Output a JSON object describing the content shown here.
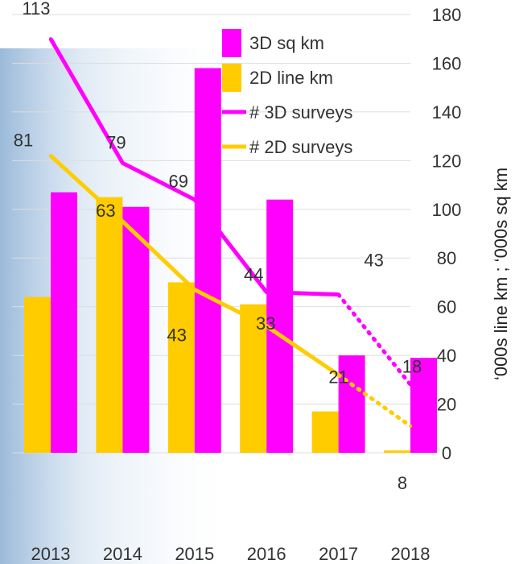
{
  "chart_data": {
    "type": "bar",
    "categories": [
      "2013",
      "2014",
      "2015",
      "2016",
      "2017",
      "2018"
    ],
    "ylabel": "‘000s line km ; ‘000s sq km",
    "ylim": [
      0,
      180
    ],
    "yticks": [
      0,
      20,
      40,
      60,
      80,
      100,
      120,
      140,
      160,
      180
    ],
    "grid": true,
    "legend_position": "top-right",
    "series": [
      {
        "name": "3D sq km",
        "kind": "bar",
        "color": "#ff00ff",
        "values": [
          107,
          101,
          158,
          104,
          40,
          39
        ]
      },
      {
        "name": "2D line km",
        "kind": "bar",
        "color": "#ffcc00",
        "values": [
          64,
          105,
          70,
          61,
          17,
          1
        ]
      },
      {
        "name": "# 3D surveys",
        "kind": "line",
        "color": "#ff00ff",
        "values": [
          170,
          119,
          104,
          66,
          65,
          28
        ],
        "labels": [
          "113",
          "79",
          "69",
          "44",
          "43",
          "18"
        ],
        "dotted_last_segment": true
      },
      {
        "name": "# 2D surveys",
        "kind": "line",
        "color": "#ffcc00",
        "values": [
          122,
          95,
          67,
          52,
          32,
          11
        ],
        "labels": [
          "81",
          "63",
          "43",
          "33",
          "21",
          "8"
        ],
        "dotted_last_segment": true
      }
    ]
  }
}
